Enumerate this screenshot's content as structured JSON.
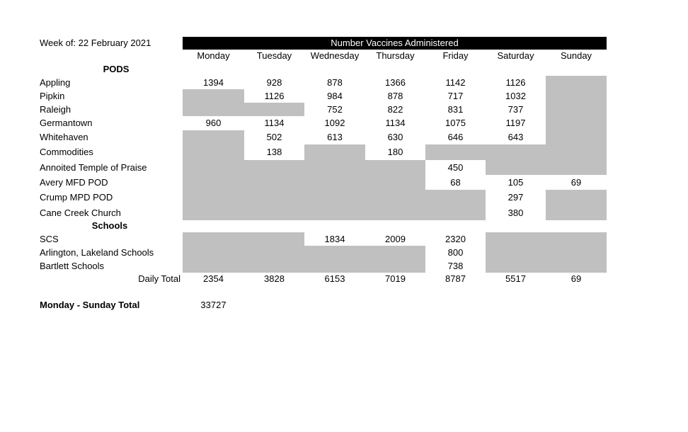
{
  "header": {
    "week_label": "Week of:  22 February 2021"
  },
  "table": {
    "title": "Number Vaccines Administered",
    "days": [
      "Monday",
      "Tuesday",
      "Wednesday",
      "Thursday",
      "Friday",
      "Saturday",
      "Sunday"
    ],
    "sections": [
      {
        "title": "PODS",
        "rows": [
          {
            "label": "Appling",
            "values": [
              1394,
              928,
              878,
              1366,
              1142,
              1126,
              null
            ]
          },
          {
            "label": "Pipkin",
            "values": [
              null,
              1126,
              984,
              878,
              717,
              1032,
              null
            ]
          },
          {
            "label": "Raleigh",
            "values": [
              null,
              null,
              752,
              822,
              831,
              737,
              null
            ]
          },
          {
            "label": "Germantown",
            "values": [
              960,
              1134,
              1092,
              1134,
              1075,
              1197,
              null
            ]
          },
          {
            "label": "Whitehaven",
            "values": [
              null,
              502,
              613,
              630,
              646,
              643,
              null
            ]
          },
          {
            "label": "Commodities",
            "values": [
              null,
              138,
              null,
              180,
              null,
              null,
              null
            ]
          },
          {
            "label": "Annoited Temple of Praise",
            "values": [
              null,
              null,
              null,
              null,
              450,
              null,
              null
            ]
          },
          {
            "label": "Avery MFD POD",
            "values": [
              null,
              null,
              null,
              null,
              68,
              105,
              69
            ]
          },
          {
            "label": "Crump MPD POD",
            "values": [
              null,
              null,
              null,
              null,
              null,
              297,
              null
            ]
          },
          {
            "label": "Cane Creek Church",
            "values": [
              null,
              null,
              null,
              null,
              null,
              380,
              null
            ]
          }
        ]
      },
      {
        "title": "Schools",
        "rows": [
          {
            "label": "SCS",
            "values": [
              null,
              null,
              1834,
              2009,
              2320,
              null,
              null
            ]
          },
          {
            "label": "Arlington, Lakeland Schools",
            "values": [
              null,
              null,
              null,
              null,
              800,
              null,
              null
            ]
          },
          {
            "label": "Bartlett  Schools",
            "values": [
              null,
              null,
              null,
              null,
              738,
              null,
              null
            ]
          }
        ]
      }
    ],
    "totals": {
      "label": "Daily Total",
      "values": [
        2354,
        3828,
        6153,
        7019,
        8787,
        5517,
        69
      ]
    }
  },
  "grand_total": {
    "label": "Monday - Sunday Total",
    "value": 33727
  }
}
